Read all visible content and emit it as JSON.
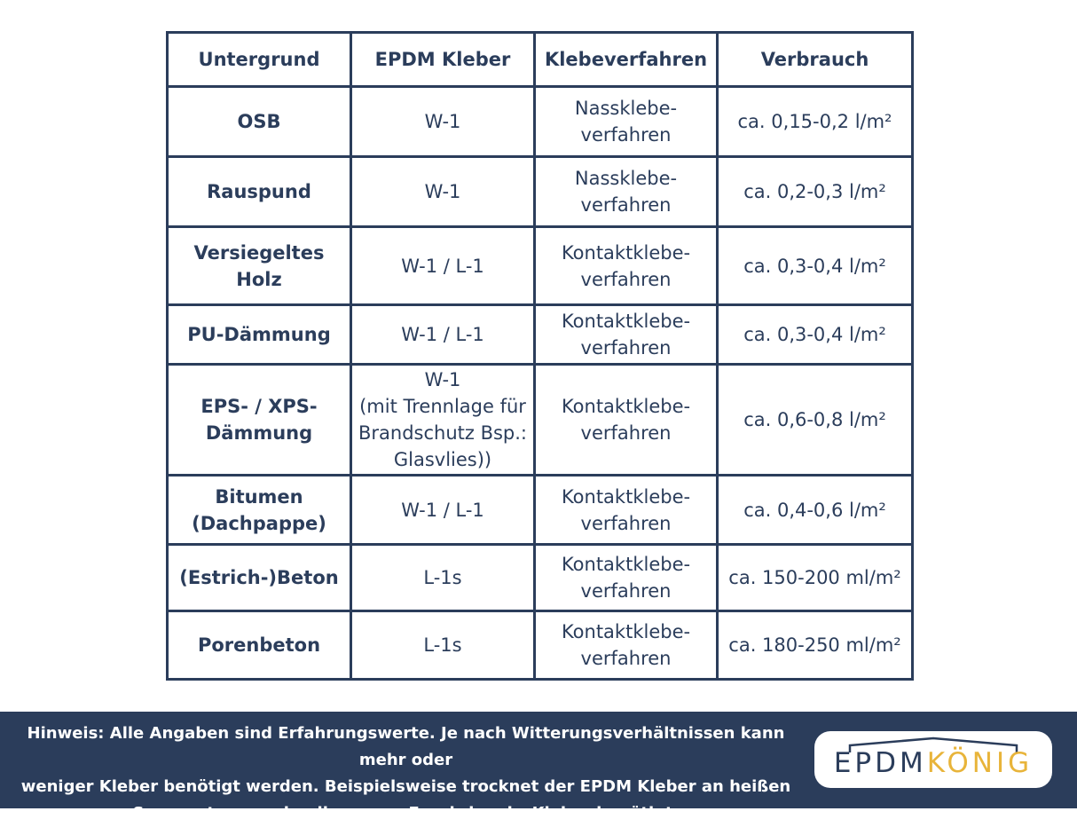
{
  "table": {
    "headers": [
      "Untergrund",
      "EPDM Kleber",
      "Klebeverfahren",
      "Verbrauch"
    ],
    "rows": [
      {
        "untergrund": "OSB",
        "kleber": "W-1",
        "verfahren": "Nassklebe-\nverfahren",
        "verbrauch": "ca. 0,15-0,2 l/m²"
      },
      {
        "untergrund": "Rauspund",
        "kleber": "W-1",
        "verfahren": "Nassklebe-\nverfahren",
        "verbrauch": "ca. 0,2-0,3 l/m²"
      },
      {
        "untergrund": "Versiegeltes Holz",
        "kleber": "W-1 / L-1",
        "verfahren": "Kontaktklebe-\nverfahren",
        "verbrauch": "ca. 0,3-0,4 l/m²"
      },
      {
        "untergrund": "PU-Dämmung",
        "kleber": "W-1 / L-1",
        "verfahren": "Kontaktklebe-\nverfahren",
        "verbrauch": "ca. 0,3-0,4 l/m²"
      },
      {
        "untergrund": "EPS- / XPS-\nDämmung",
        "kleber": "W-1\n(mit Trennlage für\nBrandschutz Bsp.:\nGlasvlies))",
        "verfahren": "Kontaktklebe-\nverfahren",
        "verbrauch": "ca. 0,6-0,8 l/m²"
      },
      {
        "untergrund": "Bitumen\n(Dachpappe)",
        "kleber": "W-1 / L-1",
        "verfahren": "Kontaktklebe-\nverfahren",
        "verbrauch": "ca. 0,4-0,6 l/m²"
      },
      {
        "untergrund": "(Estrich-)Beton",
        "kleber": "L-1s",
        "verfahren": "Kontaktklebe-\nverfahren",
        "verbrauch": "ca. 150-200 ml/m²"
      },
      {
        "untergrund": "Porenbeton",
        "kleber": "L-1s",
        "verfahren": "Kontaktklebe-\nverfahren",
        "verbrauch": "ca. 180-250 ml/m²"
      }
    ]
  },
  "footer": {
    "note": "Hinweis: Alle Angaben sind Erfahrungswerte. Je nach Witterungsverhältnissen kann mehr oder\nweniger Kleber benötigt werden. Beispielsweise trocknet der EPDM Kleber an heißen\nSommertagen schneller aus = Es wird mehr Kleber benötigt.",
    "logo": {
      "part1": "EPDM",
      "part2": "KÖNIG"
    }
  },
  "colors": {
    "primary": "#2b3d5b",
    "accent": "#e8b43a",
    "background": "#ffffff"
  }
}
